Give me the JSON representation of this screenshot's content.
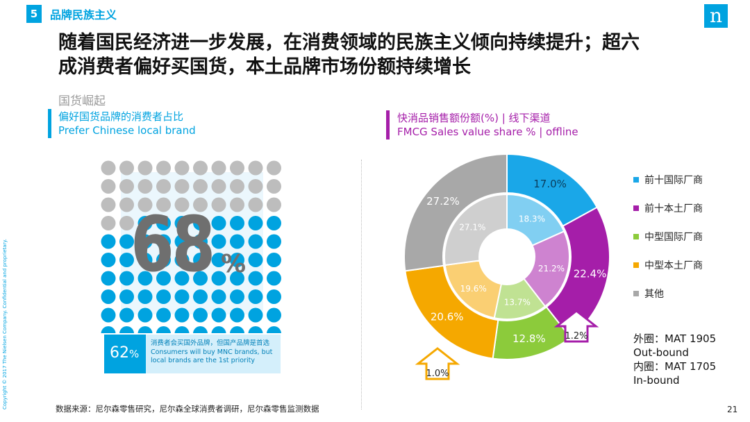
{
  "header": {
    "slide_number": "5",
    "section_title": "品牌民族主义",
    "logo_glyph": "n"
  },
  "headline": {
    "line1": "随着国民经济进一步发展，在消费领域的民族主义倾向持续提升；超六",
    "line2": "成消费者偏好买国货，本土品牌市场份额持续增长"
  },
  "subheading": "国货崛起",
  "left_panel": {
    "label_cn": "偏好国货品牌的消费者占比",
    "label_en": "Prefer Chinese local brand",
    "big_value": "68",
    "big_unit": "%",
    "grid": {
      "rows": 10,
      "cols": 10,
      "blue_count": 68,
      "gray": "#bdbdbd",
      "blue": "#00a3e0"
    },
    "box_value": "62",
    "box_unit": "%",
    "box_text_cn": "消费者会买国外品牌，但国产品牌是首选",
    "box_text_en": "Consumers will buy MNC brands, but local brands are the 1st priority"
  },
  "right_panel": {
    "label_cn": "快消品销售额份额(%) | 线下渠道",
    "label_en": "FMCG Sales value share % | offline"
  },
  "chart_data": {
    "type": "pie",
    "title": "快消品销售额份额(%) | 线下渠道",
    "categories": [
      "前十国际厂商",
      "前十本土厂商",
      "中型国际厂商",
      "中型本土厂商",
      "其他"
    ],
    "colors": [
      "#1aa7e8",
      "#a51ea9",
      "#8ccb3b",
      "#f5a800",
      "#a8a8a8"
    ],
    "series": [
      {
        "name": "外圈：MAT 1905 Out-bound",
        "values": [
          17.0,
          22.4,
          12.8,
          20.6,
          27.2
        ],
        "labels": [
          "17.0%",
          "22.4%",
          "12.8%",
          "20.6%",
          "27.2%"
        ]
      },
      {
        "name": "内圈：MAT 1705 In-bound",
        "values": [
          18.3,
          21.2,
          13.7,
          19.6,
          27.1
        ],
        "labels": [
          "18.3%",
          "21.2%",
          "13.7%",
          "19.6%",
          "27.1%"
        ]
      }
    ],
    "annotations": [
      {
        "category": "前十本土厂商",
        "text": "1.2%",
        "direction": "up"
      },
      {
        "category": "中型本土厂商",
        "text": "1.0%",
        "direction": "up"
      }
    ],
    "legend_position": "right"
  },
  "legend_items": [
    {
      "label": "前十国际厂商",
      "color": "#1aa7e8"
    },
    {
      "label": "前十本土厂商",
      "color": "#a51ea9"
    },
    {
      "label": "中型国际厂商",
      "color": "#8ccb3b"
    },
    {
      "label": "中型本土厂商",
      "color": "#f5a800"
    },
    {
      "label": "其他",
      "color": "#a8a8a8"
    }
  ],
  "period_note": {
    "outer_line1": "外圈：MAT 1905",
    "outer_line2": "Out-bound",
    "inner_line1": "内圈：MAT 1705",
    "inner_line2": "In-bound"
  },
  "footer": {
    "source": "数据来源：尼尔森零售研究，尼尔森全球消费者调研，尼尔森零售监测数据",
    "page_number": "21",
    "copyright": "Copyright © 2017 The Nielsen Company. Confidential and proprietary."
  }
}
